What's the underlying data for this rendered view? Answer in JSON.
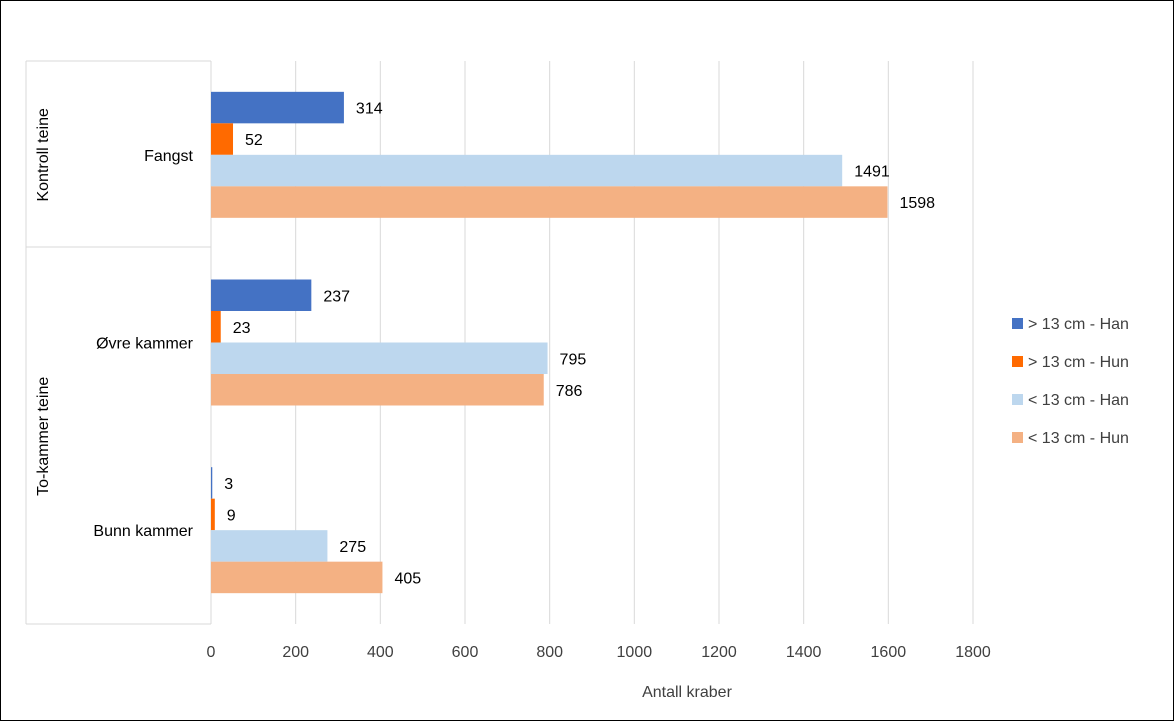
{
  "chart_data": {
    "type": "bar",
    "orientation": "horizontal",
    "xlabel": "Antall kraber",
    "xlim": [
      0,
      1800
    ],
    "xticks": [
      0,
      200,
      400,
      600,
      800,
      1000,
      1200,
      1400,
      1600,
      1800
    ],
    "grid": true,
    "legend_position": "right",
    "groups": [
      {
        "label": "Kontroll teine",
        "categories": [
          "Fangst"
        ]
      },
      {
        "label": "To-kammer teine",
        "categories": [
          "Øvre kammer",
          "Bunn kammer"
        ]
      }
    ],
    "categories": [
      "Fangst",
      "Øvre kammer",
      "Bunn kammer"
    ],
    "series": [
      {
        "name": "> 13 cm - Han",
        "color": "#4472C4",
        "values": [
          314,
          237,
          3
        ]
      },
      {
        "name": "> 13 cm - Hun",
        "color": "#FF6A00",
        "values": [
          52,
          23,
          9
        ]
      },
      {
        "name": "< 13 cm - Han",
        "color": "#BDD7EE",
        "values": [
          1491,
          795,
          275
        ]
      },
      {
        "name": "< 13 cm - Hun",
        "color": "#F4B183",
        "values": [
          1598,
          786,
          405
        ]
      }
    ]
  }
}
